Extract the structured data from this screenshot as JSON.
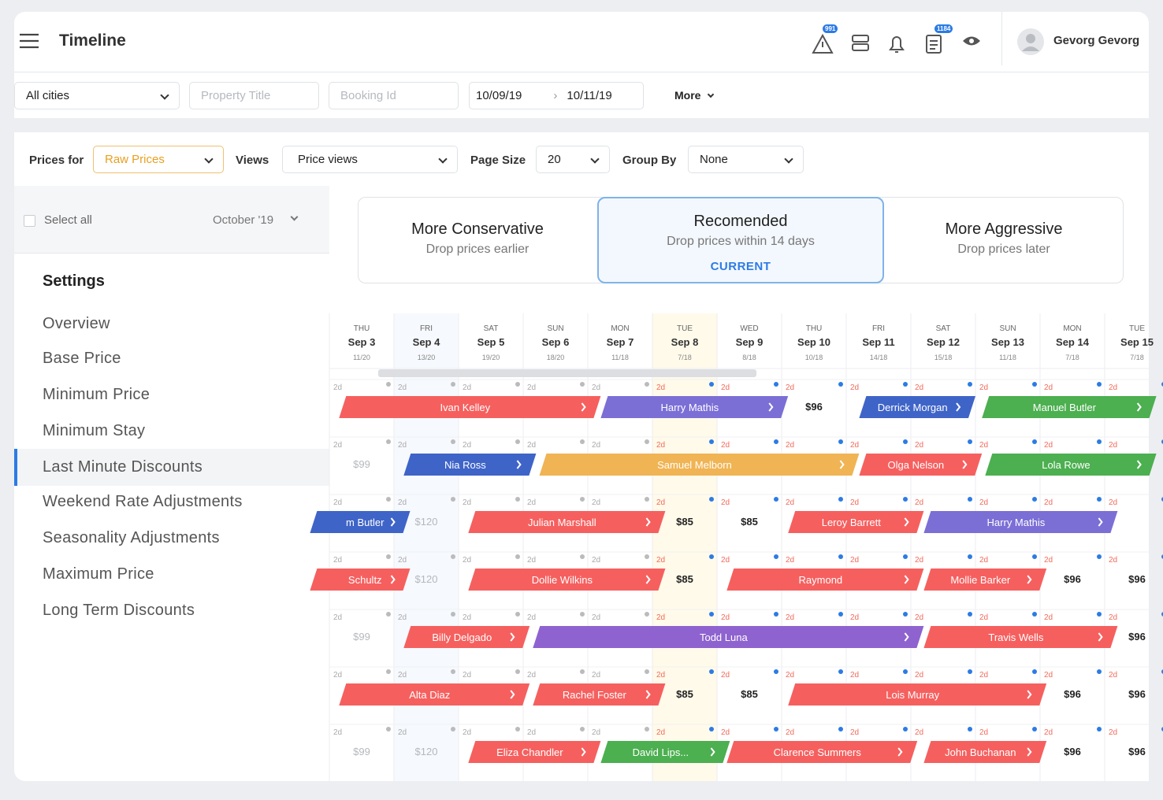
{
  "header": {
    "title": "Timeline",
    "alerts_badge": "991",
    "notes_badge": "1184",
    "user": "Gevorg Gevorg"
  },
  "filters": {
    "city": "All cities",
    "property": "Property Title",
    "booking": "Booking Id",
    "date_from": "10/09/19",
    "date_to": "10/11/19",
    "more": "More"
  },
  "toolbar": {
    "prices_label": "Prices for",
    "prices_value": "Raw Prices",
    "views_label": "Views",
    "views_value": "Price views",
    "size_label": "Page Size",
    "size_value": "20",
    "group_label": "Group By",
    "group_value": "None"
  },
  "sidebar": {
    "select_all": "Select all",
    "month": "October '19",
    "settings_title": "Settings",
    "active": 4,
    "items": [
      "Overview",
      "Base Price",
      "Minimum Price",
      "Minimum Stay",
      "Last Minute Discounts",
      "Weekend Rate Adjustments",
      "Seasonality Adjustments",
      "Maximum Price",
      "Long Term Discounts"
    ]
  },
  "strategies": [
    {
      "title": "More Conservative",
      "subtitle": "Drop prices earlier"
    },
    {
      "title": "Recomended",
      "subtitle": "Drop prices within 14 days",
      "badge": "CURRENT"
    },
    {
      "title": "More Aggressive",
      "subtitle": "Drop prices later"
    }
  ],
  "stay_label": "2d",
  "today": 5,
  "days": [
    {
      "dow": "THU",
      "date": "Sep 3",
      "sub": "11/20"
    },
    {
      "dow": "FRI",
      "date": "Sep 4",
      "sub": "13/20"
    },
    {
      "dow": "SAT",
      "date": "Sep 5",
      "sub": "19/20"
    },
    {
      "dow": "SUN",
      "date": "Sep 6",
      "sub": "18/20"
    },
    {
      "dow": "MON",
      "date": "Sep 7",
      "sub": "11/18"
    },
    {
      "dow": "TUE",
      "date": "Sep 8",
      "sub": "7/18"
    },
    {
      "dow": "WED",
      "date": "Sep 9",
      "sub": "8/18"
    },
    {
      "dow": "THU",
      "date": "Sep 10",
      "sub": "10/18"
    },
    {
      "dow": "FRI",
      "date": "Sep 11",
      "sub": "14/18"
    },
    {
      "dow": "SAT",
      "date": "Sep 12",
      "sub": "15/18"
    },
    {
      "dow": "SUN",
      "date": "Sep 13",
      "sub": "11/18"
    },
    {
      "dow": "MON",
      "date": "Sep 14",
      "sub": "7/18"
    },
    {
      "dow": "TUE",
      "date": "Sep 15",
      "sub": "7/18"
    }
  ],
  "rows": [
    {
      "bookings": [
        {
          "name": "Ivan Kelley",
          "start": 0.15,
          "end": 4.2,
          "color": "#f5605f"
        },
        {
          "name": "Harry Mathis",
          "start": 4.2,
          "end": 7.1,
          "color": "#7b6fd6"
        },
        {
          "name": "Derrick Morgan",
          "start": 8.2,
          "end": 10.0,
          "color": "#3f64c8"
        },
        {
          "name": "Manuel Butler",
          "start": 10.1,
          "end": 12.8,
          "color": "#4caf50"
        }
      ],
      "prices": [
        {
          "col": 7,
          "text": "$96"
        }
      ]
    },
    {
      "bookings": [
        {
          "name": "Nia Ross",
          "start": 1.15,
          "end": 3.2,
          "color": "#3f64c8"
        },
        {
          "name": "Samuel Melborn",
          "start": 3.25,
          "end": 8.2,
          "color": "#f0b454"
        },
        {
          "name": "Olga Nelson",
          "start": 8.2,
          "end": 10.1,
          "color": "#f5605f"
        },
        {
          "name": "Lola Rowe",
          "start": 10.15,
          "end": 12.8,
          "color": "#4caf50"
        }
      ],
      "prices": [
        {
          "col": 0,
          "text": "$99"
        }
      ]
    },
    {
      "bookings": [
        {
          "name": "m Butler",
          "start": -0.3,
          "end": 1.25,
          "color": "#3f64c8"
        },
        {
          "name": "Julian Marshall",
          "start": 2.15,
          "end": 5.2,
          "color": "#f5605f"
        },
        {
          "name": "Leroy Barrett",
          "start": 7.1,
          "end": 9.2,
          "color": "#f5605f"
        },
        {
          "name": "Harry Mathis",
          "start": 9.2,
          "end": 12.2,
          "color": "#7b6fd6"
        }
      ],
      "prices": [
        {
          "col": 1,
          "text": "$120"
        },
        {
          "col": 5,
          "text": "$85"
        },
        {
          "col": 6,
          "text": "$85"
        }
      ]
    },
    {
      "bookings": [
        {
          "name": "Schultz",
          "start": -0.3,
          "end": 1.25,
          "color": "#f5605f"
        },
        {
          "name": "Dollie Wilkins",
          "start": 2.15,
          "end": 5.2,
          "color": "#f5605f"
        },
        {
          "name": "Raymond",
          "start": 6.15,
          "end": 9.2,
          "color": "#f5605f"
        },
        {
          "name": "Mollie Barker",
          "start": 9.2,
          "end": 11.1,
          "color": "#f5605f"
        }
      ],
      "prices": [
        {
          "col": 1,
          "text": "$120"
        },
        {
          "col": 5,
          "text": "$85"
        },
        {
          "col": 11,
          "text": "$96"
        },
        {
          "col": 12,
          "text": "$96"
        }
      ]
    },
    {
      "bookings": [
        {
          "name": "Billy Delgado",
          "start": 1.15,
          "end": 3.1,
          "color": "#f5605f"
        },
        {
          "name": "Todd Luna",
          "start": 3.15,
          "end": 9.2,
          "color": "#8e63cf"
        },
        {
          "name": "Travis Wells",
          "start": 9.2,
          "end": 12.2,
          "color": "#f5605f"
        }
      ],
      "prices": [
        {
          "col": 0,
          "text": "$99"
        },
        {
          "col": 12,
          "text": "$96"
        }
      ]
    },
    {
      "bookings": [
        {
          "name": "Alta Diaz",
          "start": 0.15,
          "end": 3.1,
          "color": "#f5605f"
        },
        {
          "name": "Rachel Foster",
          "start": 3.15,
          "end": 5.2,
          "color": "#f5605f"
        },
        {
          "name": "Lois Murray",
          "start": 7.1,
          "end": 11.1,
          "color": "#f5605f"
        }
      ],
      "prices": [
        {
          "col": 5,
          "text": "$85"
        },
        {
          "col": 6,
          "text": "$85"
        },
        {
          "col": 11,
          "text": "$96"
        },
        {
          "col": 12,
          "text": "$96"
        }
      ]
    },
    {
      "bookings": [
        {
          "name": "Eliza Chandler",
          "start": 2.15,
          "end": 4.2,
          "color": "#f5605f"
        },
        {
          "name": "David Lips...",
          "start": 4.2,
          "end": 6.2,
          "color": "#4caf50"
        },
        {
          "name": "Clarence Summers",
          "start": 6.15,
          "end": 9.1,
          "color": "#f5605f"
        },
        {
          "name": "John Buchanan",
          "start": 9.2,
          "end": 11.1,
          "color": "#f5605f"
        }
      ],
      "prices": [
        {
          "col": 0,
          "text": "$99"
        },
        {
          "col": 1,
          "text": "$120"
        },
        {
          "col": 11,
          "text": "$96"
        },
        {
          "col": 12,
          "text": "$96"
        }
      ]
    }
  ]
}
